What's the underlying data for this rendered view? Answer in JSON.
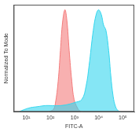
{
  "chart_data": {
    "type": "area",
    "x_label": "FITC-A",
    "y_label": "Normalized To Mode",
    "log": "x",
    "grid": false,
    "tick_labels": "x",
    "xlim": [
      3,
      300000
    ],
    "xticks": [
      {
        "value": 10,
        "label": "10¹"
      },
      {
        "value": 100,
        "label": "10²"
      },
      {
        "value": 1000,
        "label": "10³"
      },
      {
        "value": 10000,
        "label": "10⁴"
      },
      {
        "value": 100000,
        "label": "10⁵"
      }
    ],
    "ylim": [
      0,
      105
    ],
    "series": [
      {
        "color": "#33d6ee",
        "x": [
          5,
          8,
          15,
          30,
          60,
          120,
          250,
          500,
          1000,
          2000,
          3000,
          4000,
          6000,
          8000,
          10000,
          13000,
          16000,
          20000,
          26000,
          32000,
          40000,
          50000,
          64000,
          80000
        ],
        "values": [
          0,
          2,
          4,
          5,
          6,
          6,
          6,
          7,
          9,
          12,
          25,
          45,
          80,
          96,
          100,
          95,
          85,
          80,
          60,
          35,
          15,
          5,
          1,
          0
        ]
      },
      {
        "color": "#f47c7c",
        "x": [
          80,
          130,
          160,
          210,
          260,
          320,
          400,
          480,
          600,
          770,
          960,
          1300,
          1600,
          2100
        ],
        "values": [
          0,
          2,
          8,
          30,
          60,
          88,
          100,
          90,
          60,
          30,
          12,
          4,
          1,
          0
        ]
      }
    ]
  }
}
